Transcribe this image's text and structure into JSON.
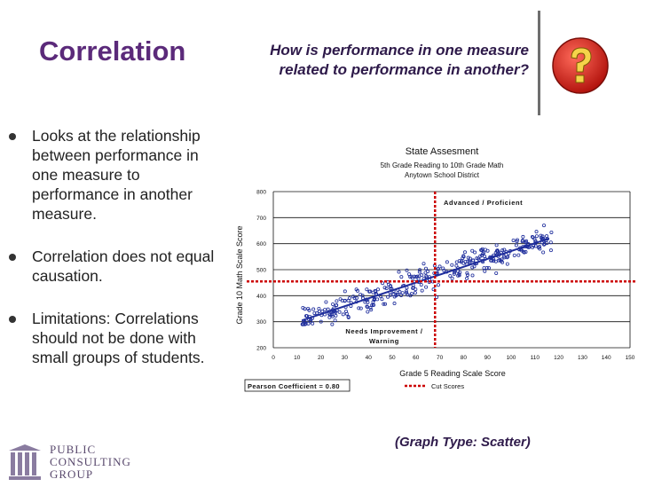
{
  "slide": {
    "title": "Correlation",
    "question": "How is performance in one measure related to performance in another?",
    "graph_type": "(Graph Type: Scatter)",
    "bullets": [
      "Looks at the relationship between performance in one measure to performance in another measure.",
      "Correlation does not equal causation.",
      "Limitations: Correlations should not be done with small groups of students."
    ],
    "logo": {
      "line1": "PUBLIC",
      "line2": "CONSULTING",
      "line3": "GROUP"
    },
    "icon": "question-mark-icon",
    "colors": {
      "title": "#5b2a7a",
      "accent_red": "#d6261f",
      "series": "#1f2e9c",
      "cut": "#cc0000"
    }
  },
  "chart_data": {
    "type": "scatter",
    "title": "State Assesment",
    "subtitle1": "5th Grade Reading to 10th Grade Math",
    "subtitle2": "Anytown School District",
    "xlabel": "Grade 5 Reading Scale Score",
    "ylabel": "Grade 10 Math Scale Score",
    "xlim": [
      0,
      150
    ],
    "ylim": [
      200,
      800
    ],
    "xticks": [
      0,
      10,
      20,
      30,
      40,
      50,
      60,
      70,
      80,
      90,
      100,
      110,
      120,
      130,
      140,
      150
    ],
    "yticks": [
      200,
      300,
      400,
      500,
      600,
      700,
      800
    ],
    "annotations": {
      "upper_right": "Advanced / Proficient",
      "lower_left_1": "Needs Improvement /",
      "lower_left_2": "Warning"
    },
    "pearson": "Pearson Coefficient = 0.80",
    "legend": {
      "cut_scores": "Cut Scores"
    },
    "cut_scores": {
      "x": 68,
      "y": 455
    },
    "trendline": {
      "x": [
        12,
        116
      ],
      "y": [
        305,
        620
      ]
    }
  }
}
